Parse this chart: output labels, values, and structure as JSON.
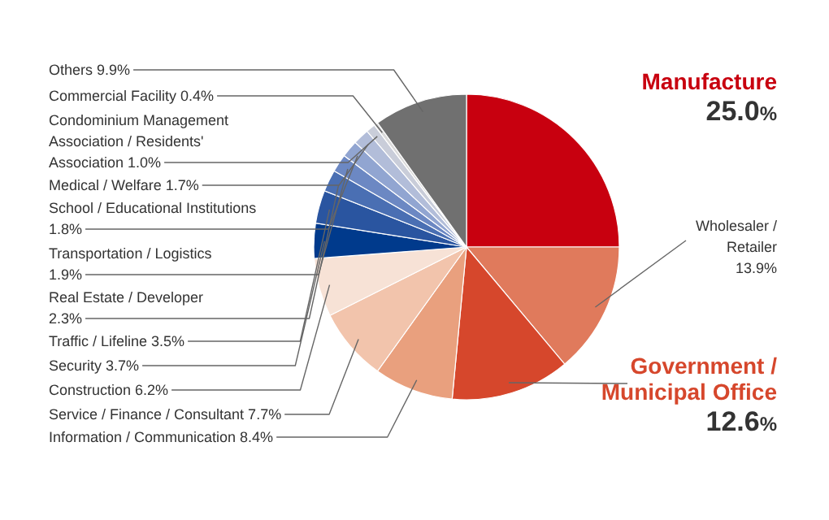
{
  "chart_data": {
    "type": "pie",
    "categories": [
      "Manufacture",
      "Wholesaler / Retailer",
      "Government / Municipal Office",
      "Information / Communication",
      "Service / Finance / Consultant",
      "Construction",
      "Security",
      "Traffic / Lifeline",
      "Real Estate / Developer",
      "Transportation / Logistics",
      "School / Educational Institutions",
      "Medical / Welfare",
      "Condominium Management Association / Residents' Association",
      "Commercial Facility",
      "Others"
    ],
    "values": [
      25.0,
      13.9,
      12.6,
      8.4,
      7.7,
      6.2,
      3.7,
      3.5,
      2.3,
      1.9,
      1.8,
      1.7,
      1.0,
      0.4,
      9.9
    ],
    "value_labels": [
      "25.0%",
      "13.9%",
      "12.6%",
      "8.4%",
      "7.7%",
      "6.2%",
      "3.7%",
      "3.5%",
      "2.3%",
      "1.9%",
      "1.8%",
      "1.7%",
      "1.0%",
      "0.4%",
      "9.9%"
    ],
    "colors": [
      "#c8000f",
      "#e07a5c",
      "#d6472c",
      "#e9a07e",
      "#f2c4ac",
      "#f7e2d6",
      "#003a8c",
      "#2a55a0",
      "#4a6fb3",
      "#6c88c3",
      "#91a5d1",
      "#b2bdd9",
      "#c9cdd9",
      "#dadada",
      "#707070"
    ]
  }
}
